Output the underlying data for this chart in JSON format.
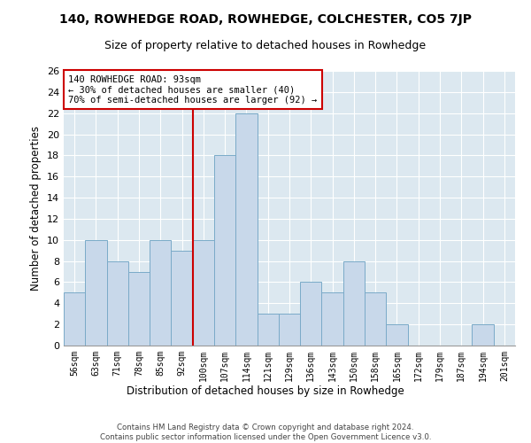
{
  "title": "140, ROWHEDGE ROAD, ROWHEDGE, COLCHESTER, CO5 7JP",
  "subtitle": "Size of property relative to detached houses in Rowhedge",
  "xlabel": "Distribution of detached houses by size in Rowhedge",
  "ylabel": "Number of detached properties",
  "bar_color": "#c8d8ea",
  "bar_edge_color": "#7aaac8",
  "bg_color": "#dce8f0",
  "categories": [
    "56sqm",
    "63sqm",
    "71sqm",
    "78sqm",
    "85sqm",
    "92sqm",
    "100sqm",
    "107sqm",
    "114sqm",
    "121sqm",
    "129sqm",
    "136sqm",
    "143sqm",
    "150sqm",
    "158sqm",
    "165sqm",
    "172sqm",
    "179sqm",
    "187sqm",
    "194sqm",
    "201sqm"
  ],
  "values": [
    5,
    10,
    8,
    7,
    10,
    9,
    10,
    18,
    22,
    3,
    3,
    6,
    5,
    8,
    5,
    2,
    0,
    0,
    0,
    2,
    0
  ],
  "vline_x": 5.5,
  "vline_color": "#cc0000",
  "annotation_text": "140 ROWHEDGE ROAD: 93sqm\n← 30% of detached houses are smaller (40)\n70% of semi-detached houses are larger (92) →",
  "annotation_box_color": "#cc0000",
  "ylim": [
    0,
    26
  ],
  "yticks": [
    0,
    2,
    4,
    6,
    8,
    10,
    12,
    14,
    16,
    18,
    20,
    22,
    24,
    26
  ],
  "footer1": "Contains HM Land Registry data © Crown copyright and database right 2024.",
  "footer2": "Contains public sector information licensed under the Open Government Licence v3.0.",
  "grid_color": "#ffffff",
  "title_fontsize": 10,
  "subtitle_fontsize": 9,
  "label_fontsize": 8.5
}
